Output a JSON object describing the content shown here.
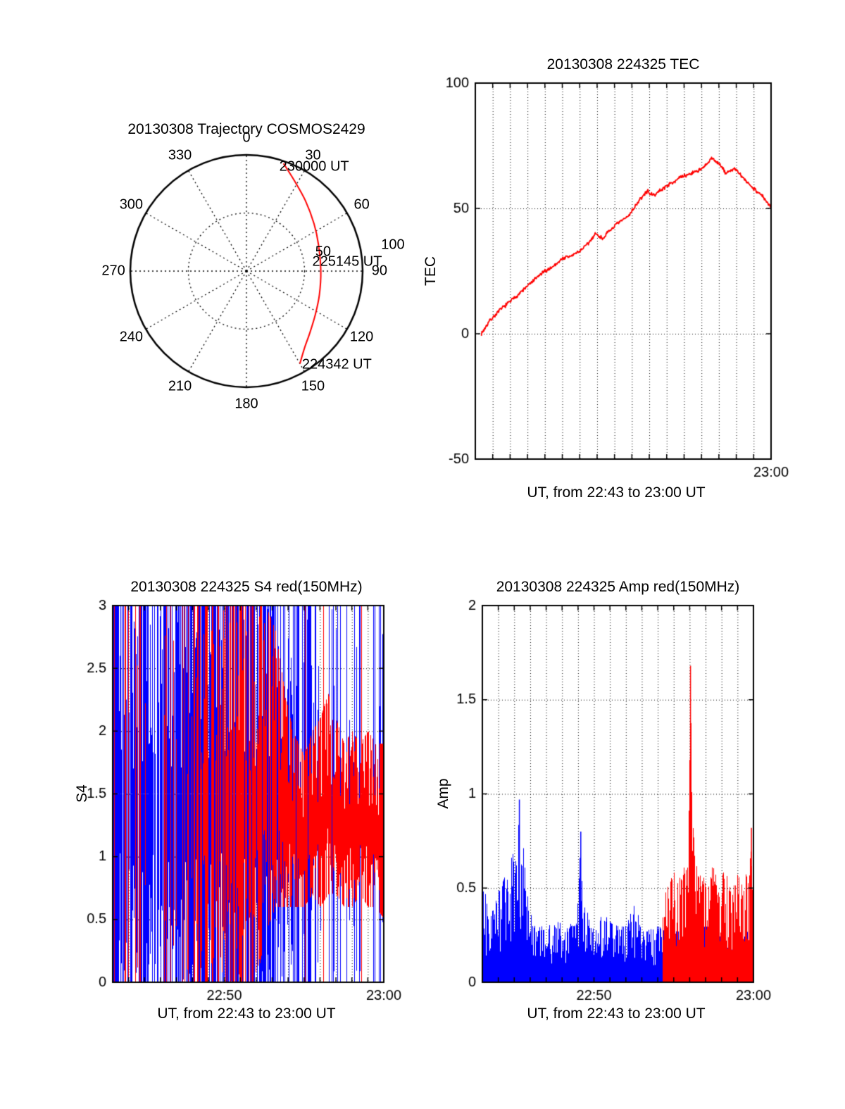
{
  "page": {
    "background": "#ffffff",
    "text_color": "#000000"
  },
  "colors": {
    "red": "#ff0000",
    "blue": "#0000ff",
    "black": "#000000"
  },
  "chart_data": [
    {
      "id": "trajectory",
      "type": "polar-track",
      "title": "20130308 Trajectory COSMOS2429",
      "azimuth_labels": [
        "0",
        "30",
        "60",
        "90",
        "120",
        "150",
        "180",
        "210",
        "240",
        "270",
        "300",
        "330"
      ],
      "inner_ring_fraction": 0.5,
      "radial_axis_labels": [
        {
          "text": "50",
          "az_deg": 76,
          "r_frac": 0.68
        },
        {
          "text": "100",
          "az_deg": 80,
          "r_frac": 1.28
        }
      ],
      "track": {
        "color": "#ff0000",
        "points_az_deg_r_frac": [
          [
            19,
            0.98
          ],
          [
            28,
            0.88
          ],
          [
            40,
            0.79
          ],
          [
            55,
            0.71
          ],
          [
            70,
            0.66
          ],
          [
            90,
            0.64
          ],
          [
            108,
            0.66
          ],
          [
            122,
            0.7
          ],
          [
            134,
            0.76
          ],
          [
            143,
            0.83
          ],
          [
            150,
            0.92
          ]
        ],
        "annotations": [
          {
            "text": "230000 UT",
            "az_deg": 33,
            "r_frac": 1.07
          },
          {
            "text": "225145 UT",
            "az_deg": 85,
            "r_frac": 0.87
          },
          {
            "text": "224342 UT",
            "az_deg": 136,
            "r_frac": 1.12
          }
        ]
      }
    },
    {
      "id": "tec",
      "type": "line",
      "title": "20130308 224325 TEC",
      "ylabel": "TEC",
      "xlabel": "UT, from 22:43 to 23:00 UT",
      "x_start_ut": "22:43",
      "x_end_ut": "23:00",
      "xlim_minutes": [
        0,
        17
      ],
      "ylim": [
        -50,
        100
      ],
      "yticks": [
        [
          -50,
          "-50"
        ],
        [
          0,
          "0"
        ],
        [
          50,
          "50"
        ],
        [
          100,
          "100"
        ]
      ],
      "h_gridlines": [
        0,
        50
      ],
      "xticks": [
        [
          17,
          "23:00"
        ]
      ],
      "minute_gridlines": true,
      "line_color": "#ff0000",
      "points_minute_tec": [
        [
          0.35,
          0
        ],
        [
          0.8,
          5
        ],
        [
          1.5,
          10
        ],
        [
          2.2,
          14
        ],
        [
          3.0,
          19
        ],
        [
          3.8,
          24
        ],
        [
          4.5,
          27
        ],
        [
          5.0,
          30
        ],
        [
          5.5,
          31
        ],
        [
          6.0,
          33
        ],
        [
          6.5,
          36
        ],
        [
          6.9,
          40
        ],
        [
          7.3,
          38
        ],
        [
          8.0,
          43
        ],
        [
          8.8,
          47
        ],
        [
          9.4,
          53
        ],
        [
          9.9,
          57
        ],
        [
          10.2,
          55
        ],
        [
          11.0,
          59
        ],
        [
          11.7,
          62
        ],
        [
          12.4,
          64
        ],
        [
          13.1,
          66
        ],
        [
          13.6,
          70
        ],
        [
          14.0,
          68
        ],
        [
          14.4,
          64
        ],
        [
          14.9,
          66
        ],
        [
          15.4,
          62
        ],
        [
          16.0,
          58
        ],
        [
          16.5,
          55
        ],
        [
          17.0,
          50
        ]
      ],
      "jitter": 0.9
    },
    {
      "id": "s4",
      "type": "scintillation-index",
      "title": "20130308 224325 S4 red(150MHz)",
      "ylabel": "S4",
      "xlabel": "UT, from 22:43 to 23:00 UT",
      "x_start_ut": "22:43",
      "x_end_ut": "23:00",
      "xlim_minutes": [
        0,
        17
      ],
      "ylim": [
        0,
        3
      ],
      "yticks": [
        [
          0,
          "0"
        ],
        [
          0.5,
          "0.5"
        ],
        [
          1,
          "1"
        ],
        [
          1.5,
          "1.5"
        ],
        [
          2,
          "2"
        ],
        [
          2.5,
          "2.5"
        ],
        [
          3,
          "3"
        ]
      ],
      "h_gridlines": [
        0.5,
        1,
        1.5,
        2,
        2.5
      ],
      "xticks": [
        [
          7,
          "22:50"
        ],
        [
          17,
          "23:00"
        ]
      ],
      "minute_gridlines": true,
      "series": [
        {
          "name": "blue",
          "color": "#0000ff",
          "full_prob": 0.55,
          "spike_prob": 0.0,
          "envelope_t_lo_hi_density": [
            [
              0,
              0,
              3,
              0.88
            ],
            [
              1,
              0,
              3,
              0.8
            ],
            [
              2,
              0,
              3,
              0.85
            ],
            [
              3,
              0,
              3,
              0.75
            ],
            [
              4,
              0,
              3,
              0.9
            ],
            [
              5,
              0,
              3,
              0.95
            ],
            [
              6,
              0,
              3,
              0.97
            ],
            [
              7,
              0,
              3,
              0.97
            ],
            [
              8,
              0,
              3,
              0.95
            ],
            [
              9,
              0,
              3,
              0.95
            ],
            [
              10,
              0,
              3,
              0.92
            ],
            [
              11,
              0,
              3,
              0.85
            ],
            [
              11.8,
              0,
              3,
              0.6
            ],
            [
              12.5,
              0,
              3,
              0.4
            ],
            [
              13,
              0,
              3,
              0.25
            ],
            [
              14,
              0,
              3,
              0.2
            ],
            [
              15,
              0,
              3,
              0.22
            ],
            [
              16,
              0,
              3,
              0.2
            ],
            [
              17,
              0,
              3,
              0.28
            ]
          ]
        },
        {
          "name": "red-150MHz",
          "color": "#ff0000",
          "full_prob": 0.45,
          "spike_prob": 0.05,
          "envelope_t_lo_hi_density": [
            [
              0,
              0,
              3,
              0.28
            ],
            [
              1,
              0,
              3,
              0.3
            ],
            [
              2,
              0,
              3,
              0.16
            ],
            [
              3,
              0,
              3,
              0.14
            ],
            [
              4,
              0,
              3,
              0.22
            ],
            [
              5,
              0,
              3,
              0.4
            ],
            [
              5.5,
              0,
              3,
              0.55
            ],
            [
              6,
              0,
              3,
              0.6
            ],
            [
              7,
              0,
              3,
              0.65
            ],
            [
              8,
              0,
              3,
              0.72
            ],
            [
              9,
              0,
              3,
              0.78
            ],
            [
              9.6,
              0.4,
              3,
              0.85
            ],
            [
              10.2,
              0.6,
              2.8,
              0.9
            ],
            [
              10.8,
              0.6,
              2.3,
              0.93
            ],
            [
              11.3,
              0.6,
              2.0,
              0.95
            ],
            [
              12,
              0.6,
              1.8,
              0.97
            ],
            [
              12.5,
              0.7,
              2.0,
              0.97
            ],
            [
              13,
              0.6,
              2.1,
              0.97
            ],
            [
              13.5,
              0.7,
              2.3,
              0.97
            ],
            [
              14,
              0.7,
              2.1,
              0.97
            ],
            [
              14.5,
              0.6,
              1.9,
              0.97
            ],
            [
              15,
              0.6,
              2.0,
              0.97
            ],
            [
              15.5,
              0.7,
              1.9,
              0.97
            ],
            [
              16,
              0.6,
              2.0,
              0.97
            ],
            [
              16.5,
              0.6,
              1.9,
              0.97
            ],
            [
              17,
              0.5,
              1.9,
              0.97
            ]
          ]
        }
      ]
    },
    {
      "id": "amp",
      "type": "amplitude",
      "title": "20130308 224325 Amp red(150MHz)",
      "ylabel": "Amp",
      "xlabel": "UT, from 22:43 to 23:00 UT",
      "x_start_ut": "22:43",
      "x_end_ut": "23:00",
      "xlim_minutes": [
        0,
        17
      ],
      "ylim": [
        0,
        2
      ],
      "yticks": [
        [
          0,
          "0"
        ],
        [
          0.5,
          "0.5"
        ],
        [
          1,
          "1"
        ],
        [
          1.5,
          "1.5"
        ],
        [
          2,
          "2"
        ]
      ],
      "h_gridlines": [
        0.5,
        1,
        1.5
      ],
      "xticks": [
        [
          7,
          "22:50"
        ],
        [
          17,
          "23:00"
        ]
      ],
      "minute_gridlines": true,
      "series": [
        {
          "name": "blue",
          "color": "#0000ff",
          "t_start": 0,
          "t_end": 17,
          "envelope_t_max": [
            [
              0.15,
              0.5
            ],
            [
              0.4,
              0.32
            ],
            [
              0.8,
              0.45
            ],
            [
              1.2,
              0.55
            ],
            [
              1.6,
              0.6
            ],
            [
              2.0,
              0.72
            ],
            [
              2.3,
              0.95
            ],
            [
              2.6,
              0.72
            ],
            [
              2.9,
              0.4
            ],
            [
              3.3,
              0.3
            ],
            [
              4,
              0.3
            ],
            [
              4.7,
              0.33
            ],
            [
              5.3,
              0.3
            ],
            [
              5.9,
              0.33
            ],
            [
              6.15,
              0.78
            ],
            [
              6.4,
              0.4
            ],
            [
              7,
              0.3
            ],
            [
              7.5,
              0.38
            ],
            [
              8,
              0.33
            ],
            [
              8.5,
              0.3
            ],
            [
              9,
              0.3
            ],
            [
              9.5,
              0.42
            ],
            [
              10,
              0.3
            ],
            [
              10.5,
              0.28
            ],
            [
              11,
              0.3
            ],
            [
              12,
              0.3
            ],
            [
              13,
              0.25
            ],
            [
              14,
              0.3
            ],
            [
              15,
              0.25
            ],
            [
              16,
              0.26
            ],
            [
              17,
              0.3
            ]
          ],
          "spikes": [
            {
              "t": 2.3,
              "v": 0.97
            },
            {
              "t": 6.15,
              "v": 0.8
            }
          ]
        },
        {
          "name": "red-150MHz",
          "color": "#ff0000",
          "t_start": 11.3,
          "t_end": 17,
          "envelope_t_max": [
            [
              11.3,
              0.5
            ],
            [
              11.7,
              0.55
            ],
            [
              12.1,
              0.6
            ],
            [
              12.5,
              0.55
            ],
            [
              12.9,
              0.75
            ],
            [
              13.0,
              1.3
            ],
            [
              13.05,
              1.68
            ],
            [
              13.1,
              1.1
            ],
            [
              13.3,
              0.7
            ],
            [
              13.6,
              0.6
            ],
            [
              14,
              0.58
            ],
            [
              14.4,
              0.62
            ],
            [
              14.8,
              0.55
            ],
            [
              15.2,
              0.6
            ],
            [
              15.6,
              0.5
            ],
            [
              16,
              0.58
            ],
            [
              16.4,
              0.52
            ],
            [
              16.8,
              0.75
            ],
            [
              17,
              0.65
            ]
          ],
          "spikes": [
            {
              "t": 13.03,
              "v": 1.68
            },
            {
              "t": 16.85,
              "v": 0.82
            }
          ]
        }
      ]
    }
  ]
}
